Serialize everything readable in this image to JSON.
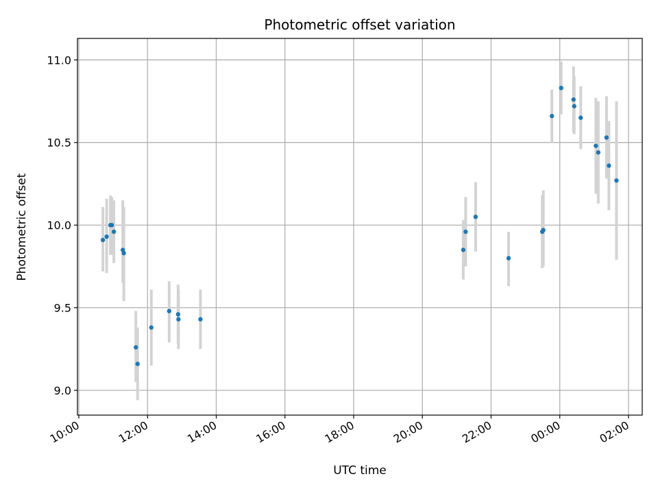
{
  "chart_data": {
    "type": "scatter",
    "title": "Photometric offset variation",
    "xlabel": "UTC time",
    "ylabel": "Photometric offset",
    "x_unit": "hours since 00:00 of first day",
    "xlim": [
      9.96,
      26.4
    ],
    "ylim": [
      8.85,
      11.13
    ],
    "grid": true,
    "x_ticks": [
      {
        "value": 10,
        "label": "10:00"
      },
      {
        "value": 12,
        "label": "12:00"
      },
      {
        "value": 14,
        "label": "14:00"
      },
      {
        "value": 16,
        "label": "16:00"
      },
      {
        "value": 18,
        "label": "18:00"
      },
      {
        "value": 20,
        "label": "20:00"
      },
      {
        "value": 22,
        "label": "22:00"
      },
      {
        "value": 24,
        "label": "00:00"
      },
      {
        "value": 26,
        "label": "02:00"
      }
    ],
    "y_ticks": [
      {
        "value": 9.0,
        "label": "9.0"
      },
      {
        "value": 9.5,
        "label": "9.5"
      },
      {
        "value": 10.0,
        "label": "10.0"
      },
      {
        "value": 10.5,
        "label": "10.5"
      },
      {
        "value": 11.0,
        "label": "11.0"
      }
    ],
    "colors": {
      "point": "#1f77b4",
      "errorbar": "#d3d3d3",
      "grid": "#b0b0b0"
    },
    "points": [
      {
        "x": 10.7,
        "y": 9.91,
        "ylo": 9.72,
        "yhi": 10.11
      },
      {
        "x": 10.81,
        "y": 9.93,
        "ylo": 9.71,
        "yhi": 10.16
      },
      {
        "x": 10.92,
        "y": 10.0,
        "ylo": 9.82,
        "yhi": 10.18
      },
      {
        "x": 10.96,
        "y": 10.0,
        "ylo": 9.82,
        "yhi": 10.17
      },
      {
        "x": 11.02,
        "y": 9.96,
        "ylo": 9.77,
        "yhi": 10.15
      },
      {
        "x": 11.28,
        "y": 9.85,
        "ylo": 9.65,
        "yhi": 10.15
      },
      {
        "x": 11.31,
        "y": 9.83,
        "ylo": 9.54,
        "yhi": 10.11
      },
      {
        "x": 11.66,
        "y": 9.26,
        "ylo": 9.05,
        "yhi": 9.48
      },
      {
        "x": 11.71,
        "y": 9.16,
        "ylo": 8.94,
        "yhi": 9.38
      },
      {
        "x": 12.11,
        "y": 9.38,
        "ylo": 9.15,
        "yhi": 9.61
      },
      {
        "x": 12.63,
        "y": 9.48,
        "ylo": 9.29,
        "yhi": 9.66
      },
      {
        "x": 12.89,
        "y": 9.46,
        "ylo": 9.28,
        "yhi": 9.64
      },
      {
        "x": 12.9,
        "y": 9.43,
        "ylo": 9.25,
        "yhi": 9.61
      },
      {
        "x": 13.54,
        "y": 9.43,
        "ylo": 9.25,
        "yhi": 9.61
      },
      {
        "x": 21.19,
        "y": 9.85,
        "ylo": 9.67,
        "yhi": 10.03
      },
      {
        "x": 21.26,
        "y": 9.96,
        "ylo": 9.75,
        "yhi": 10.17
      },
      {
        "x": 21.55,
        "y": 10.05,
        "ylo": 9.84,
        "yhi": 10.26
      },
      {
        "x": 22.51,
        "y": 9.8,
        "ylo": 9.63,
        "yhi": 9.96
      },
      {
        "x": 23.49,
        "y": 9.96,
        "ylo": 9.74,
        "yhi": 10.18
      },
      {
        "x": 23.52,
        "y": 9.97,
        "ylo": 9.75,
        "yhi": 10.21
      },
      {
        "x": 23.77,
        "y": 10.66,
        "ylo": 10.5,
        "yhi": 10.82
      },
      {
        "x": 24.04,
        "y": 10.83,
        "ylo": 10.67,
        "yhi": 10.99
      },
      {
        "x": 24.4,
        "y": 10.76,
        "ylo": 10.56,
        "yhi": 10.96
      },
      {
        "x": 24.42,
        "y": 10.72,
        "ylo": 10.55,
        "yhi": 10.9
      },
      {
        "x": 24.61,
        "y": 10.65,
        "ylo": 10.46,
        "yhi": 10.84
      },
      {
        "x": 25.05,
        "y": 10.48,
        "ylo": 10.19,
        "yhi": 10.77
      },
      {
        "x": 25.12,
        "y": 10.44,
        "ylo": 10.13,
        "yhi": 10.75
      },
      {
        "x": 25.36,
        "y": 10.53,
        "ylo": 10.28,
        "yhi": 10.78
      },
      {
        "x": 25.43,
        "y": 10.36,
        "ylo": 10.09,
        "yhi": 10.63
      },
      {
        "x": 25.65,
        "y": 10.27,
        "ylo": 9.79,
        "yhi": 10.75
      }
    ]
  }
}
